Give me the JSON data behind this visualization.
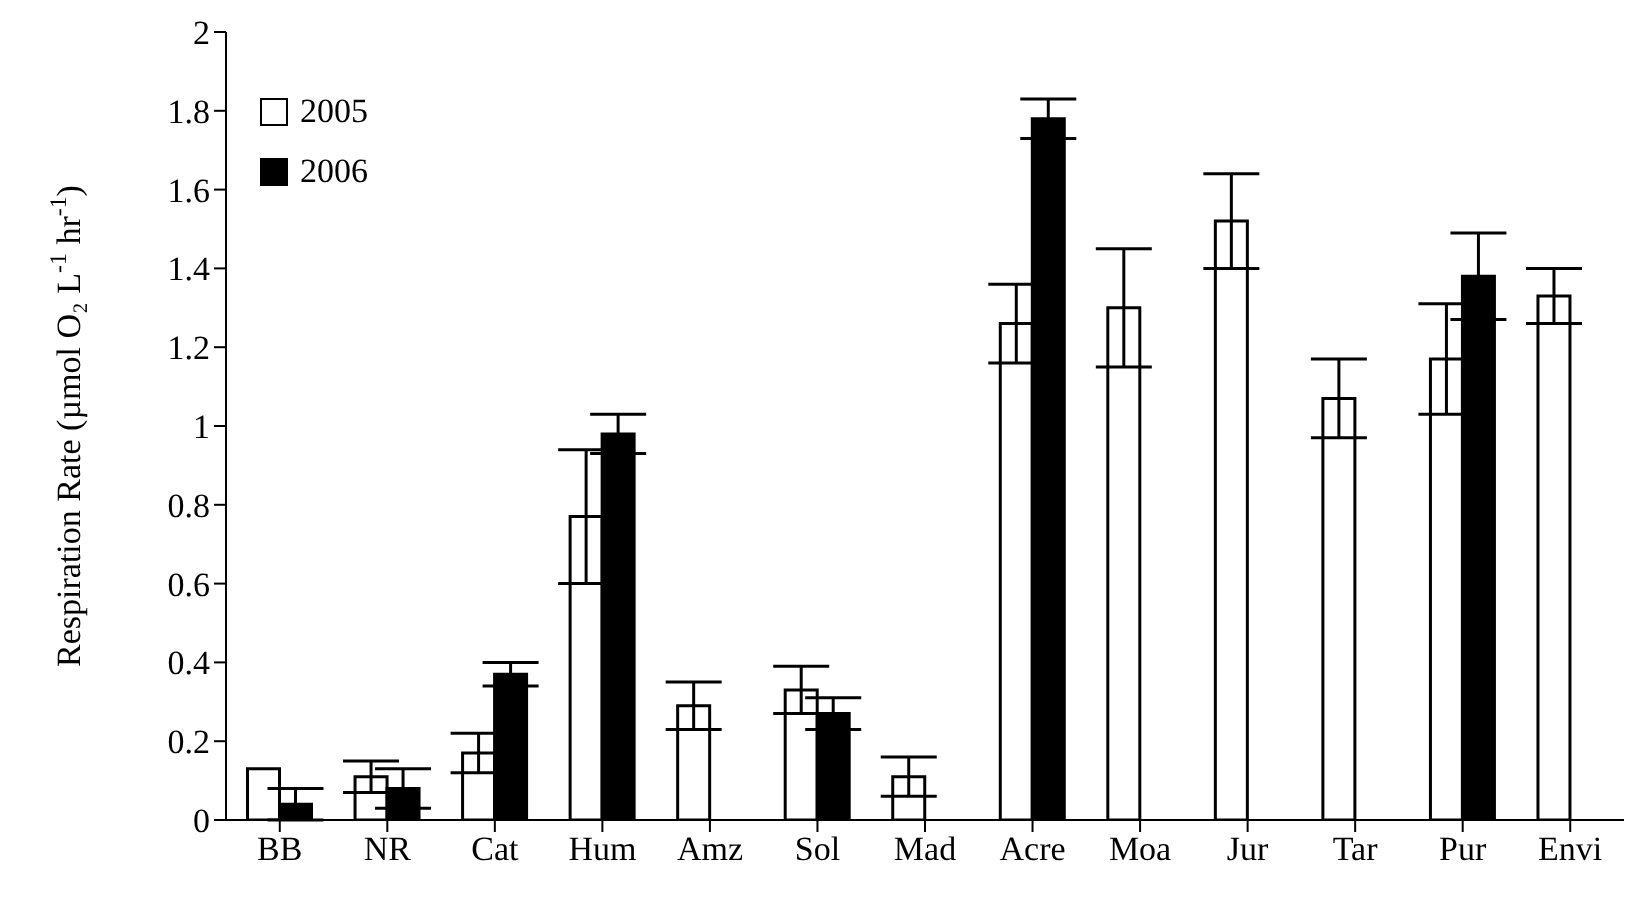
{
  "chart_data": {
    "type": "bar",
    "ylabel": "Respiration Rate (µmol O₂ L$^{-1}$ hr$^{-1}$)",
    "categories": [
      "BB",
      "NR",
      "Cat",
      "Hum",
      "Amz",
      "Sol",
      "Mad",
      "Acre",
      "Moa",
      "Jur",
      "Tar",
      "Pur",
      "Envi"
    ],
    "series": [
      {
        "name": "2005",
        "color": "#ffffff",
        "values": [
          0.13,
          0.11,
          0.17,
          0.77,
          0.29,
          0.33,
          0.11,
          1.26,
          1.3,
          1.52,
          1.07,
          1.17,
          1.33
        ],
        "errors": [
          null,
          0.04,
          0.05,
          0.17,
          0.06,
          0.06,
          0.05,
          0.1,
          0.15,
          0.12,
          0.1,
          0.14,
          0.07
        ]
      },
      {
        "name": "2006",
        "color": "#000000",
        "values": [
          0.04,
          0.08,
          0.37,
          0.98,
          null,
          0.27,
          null,
          1.78,
          null,
          null,
          null,
          1.38,
          null
        ],
        "errors": [
          0.04,
          0.05,
          0.03,
          0.05,
          null,
          0.04,
          null,
          0.05,
          null,
          null,
          null,
          0.11,
          null
        ]
      }
    ],
    "ylim": [
      0,
      2
    ],
    "yticks": [
      0,
      0.2,
      0.4,
      0.6,
      0.8,
      1,
      1.2,
      1.4,
      1.6,
      1.8,
      2
    ],
    "legend": "top left",
    "grid": false
  }
}
